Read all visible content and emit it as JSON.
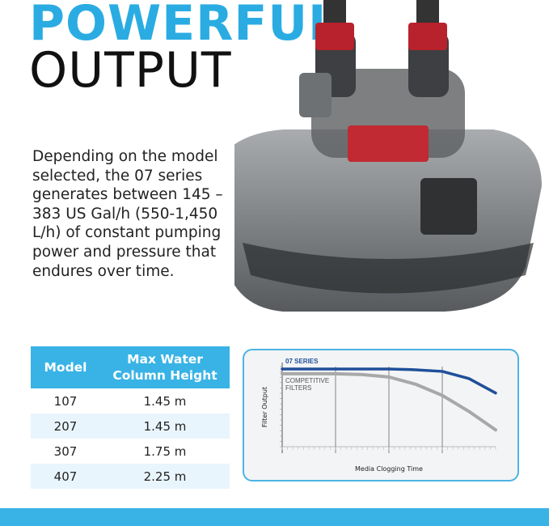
{
  "headline": {
    "line1": "POWERFUL",
    "line2": "OUTPUT"
  },
  "description": "Depending on the model selected, the 07 series generates between 145 – 383 US Gal/h (550-1,450 L/h) of constant pumping power and pressure that endures over time.",
  "table": {
    "headers": [
      "Model",
      "Max Water Column Height"
    ],
    "rows": [
      [
        "107",
        "1.45 m"
      ],
      [
        "207",
        "1.45 m"
      ],
      [
        "307",
        "1.75 m"
      ],
      [
        "407",
        "2.25 m"
      ]
    ]
  },
  "colors": {
    "brand": "#2aace2",
    "series_07": "#1f4f9a",
    "competitive": "#a8a8a8"
  },
  "chart_data": {
    "type": "line",
    "xlabel": "Media Clogging Time",
    "ylabel": "Filter Output",
    "xlim": [
      0,
      4
    ],
    "ylim": [
      0,
      100
    ],
    "grid": "vertical",
    "series": [
      {
        "name": "07 SERIES",
        "x": [
          0,
          1,
          2,
          2.5,
          3,
          3.5,
          4
        ],
        "y": [
          97,
          97,
          97,
          96,
          94,
          85,
          67
        ]
      },
      {
        "name": "COMPETITIVE FILTERS",
        "x": [
          0,
          1,
          1.5,
          2,
          2.5,
          3,
          3.5,
          4
        ],
        "y": [
          91,
          91,
          90,
          87,
          78,
          64,
          44,
          21
        ]
      }
    ]
  }
}
